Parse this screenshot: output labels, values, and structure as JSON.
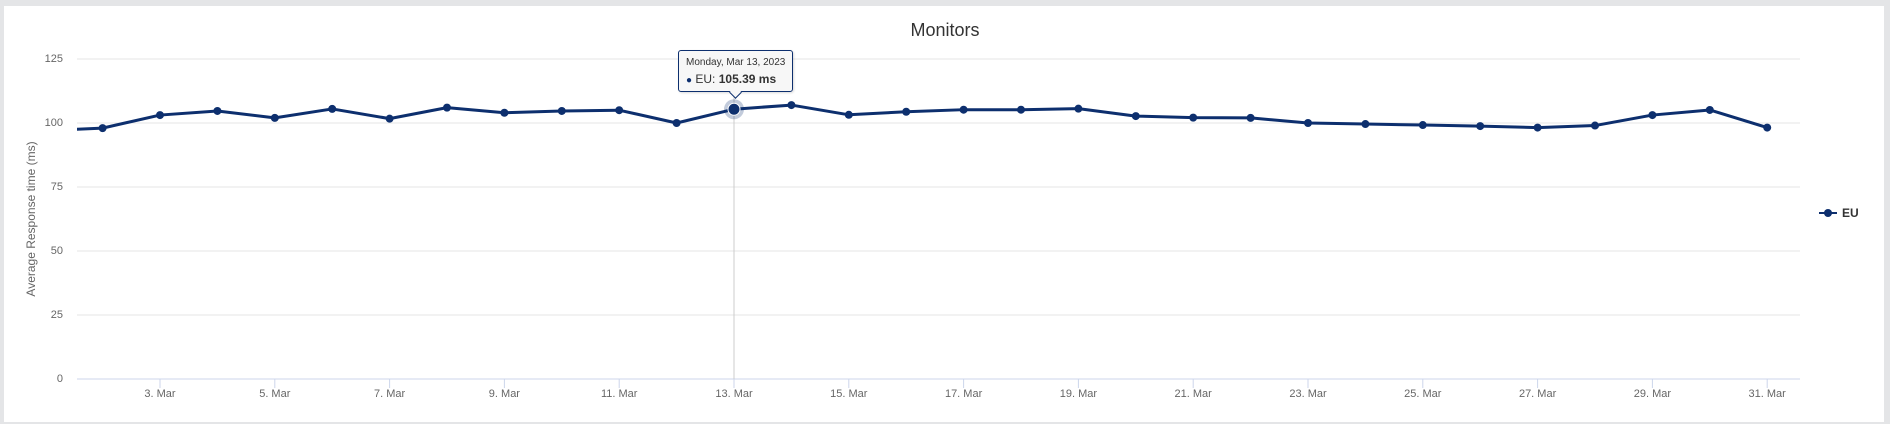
{
  "chart": {
    "title": "Monitors",
    "y_axis_title": "Average Response time (ms)",
    "y_ticks": [
      "0",
      "25",
      "50",
      "75",
      "100",
      "125"
    ],
    "x_ticks": [
      "3. Mar",
      "5. Mar",
      "7. Mar",
      "9. Mar",
      "11. Mar",
      "13. Mar",
      "15. Mar",
      "17. Mar",
      "19. Mar",
      "21. Mar",
      "23. Mar",
      "25. Mar",
      "27. Mar",
      "29. Mar",
      "31. Mar"
    ],
    "legend": {
      "label": "EU"
    },
    "tooltip": {
      "date": "Monday, Mar 13, 2023",
      "series": "EU: ",
      "value": "105.39 ms",
      "bullet": "●"
    },
    "colors": {
      "series": "#0d2f6e",
      "grid": "#e6e6e6",
      "axis": "#ccd6eb",
      "crosshair": "#cccccc"
    }
  },
  "chart_data": {
    "type": "line",
    "title": "Monitors",
    "xlabel": "",
    "ylabel": "Average Response time (ms)",
    "ylim": [
      0,
      125
    ],
    "y_ticks": [
      0,
      25,
      50,
      75,
      100,
      125
    ],
    "grid": true,
    "legend_position": "right",
    "x": [
      "1 Mar",
      "2 Mar",
      "3 Mar",
      "4 Mar",
      "5 Mar",
      "6 Mar",
      "7 Mar",
      "8 Mar",
      "9 Mar",
      "10 Mar",
      "11 Mar",
      "12 Mar",
      "13 Mar",
      "14 Mar",
      "15 Mar",
      "16 Mar",
      "17 Mar",
      "18 Mar",
      "19 Mar",
      "20 Mar",
      "21 Mar",
      "22 Mar",
      "23 Mar",
      "24 Mar",
      "25 Mar",
      "26 Mar",
      "27 Mar",
      "28 Mar",
      "29 Mar",
      "30 Mar",
      "31 Mar"
    ],
    "series": [
      {
        "name": "EU",
        "values": [
          97.0,
          98.0,
          103.1,
          104.7,
          102.0,
          105.5,
          101.7,
          106.0,
          104.0,
          104.7,
          105.0,
          100.0,
          105.39,
          107.0,
          103.2,
          104.4,
          105.2,
          105.2,
          105.6,
          102.7,
          102.1,
          102.0,
          100.0,
          99.6,
          99.2,
          98.8,
          98.2,
          99.0,
          103.1,
          105.1,
          98.2
        ]
      }
    ],
    "highlighted_point": {
      "x": "13 Mar",
      "date": "Monday, Mar 13, 2023",
      "series": "EU",
      "value": 105.39,
      "unit": "ms"
    }
  }
}
